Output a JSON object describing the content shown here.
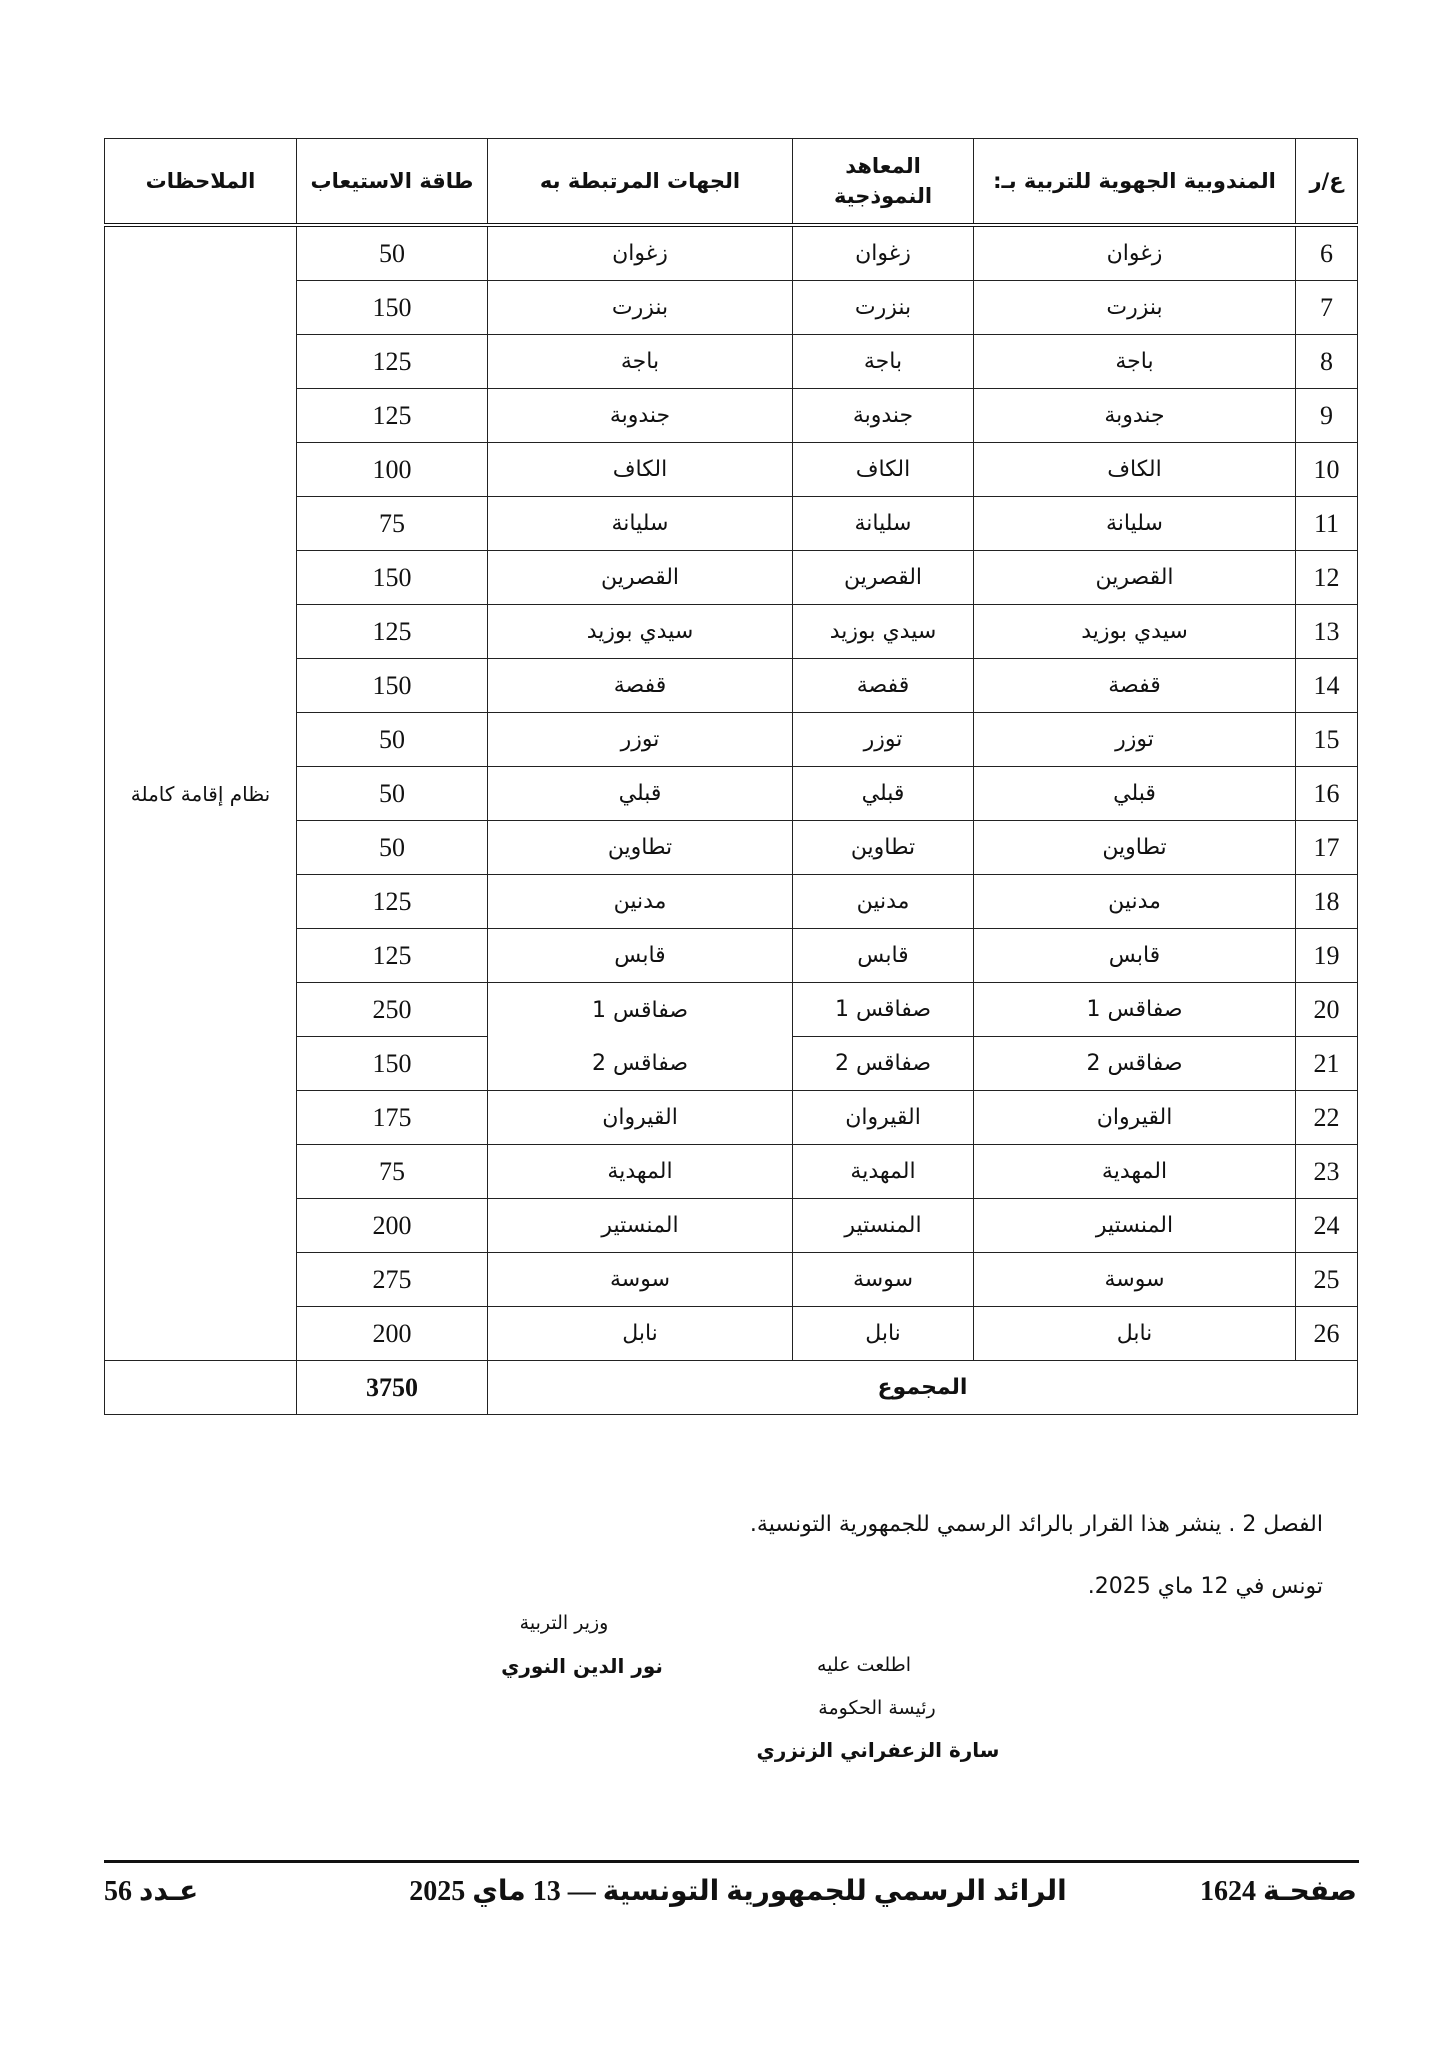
{
  "table": {
    "headers": [
      "ع/ر",
      "المندوبية الجهوية للتربية بـ:",
      "المعاهد النموذجية",
      "الجهات المرتبطة به",
      "طاقة الاستيعاب",
      "الملاحظات"
    ],
    "notes": "نظام إقامة كاملة",
    "rows": [
      {
        "n": "6",
        "region": "زغوان",
        "institute": "زغوان",
        "linked": "زغوان",
        "capacity": "50"
      },
      {
        "n": "7",
        "region": "بنزرت",
        "institute": "بنزرت",
        "linked": "بنزرت",
        "capacity": "150"
      },
      {
        "n": "8",
        "region": "باجة",
        "institute": "باجة",
        "linked": "باجة",
        "capacity": "125"
      },
      {
        "n": "9",
        "region": "جندوبة",
        "institute": "جندوبة",
        "linked": "جندوبة",
        "capacity": "125"
      },
      {
        "n": "10",
        "region": "الكاف",
        "institute": "الكاف",
        "linked": "الكاف",
        "capacity": "100"
      },
      {
        "n": "11",
        "region": "سليانة",
        "institute": "سليانة",
        "linked": "سليانة",
        "capacity": "75"
      },
      {
        "n": "12",
        "region": "القصرين",
        "institute": "القصرين",
        "linked": "القصرين",
        "capacity": "150"
      },
      {
        "n": "13",
        "region": "سيدي بوزيد",
        "institute": "سيدي بوزيد",
        "linked": "سيدي بوزيد",
        "capacity": "125"
      },
      {
        "n": "14",
        "region": "قفصة",
        "institute": "قفصة",
        "linked": "قفصة",
        "capacity": "150"
      },
      {
        "n": "15",
        "region": "توزر",
        "institute": "توزر",
        "linked": "توزر",
        "capacity": "50"
      },
      {
        "n": "16",
        "region": "قبلي",
        "institute": "قبلي",
        "linked": "قبلي",
        "capacity": "50"
      },
      {
        "n": "17",
        "region": "تطاوين",
        "institute": "تطاوين",
        "linked": "تطاوين",
        "capacity": "50"
      },
      {
        "n": "18",
        "region": "مدنين",
        "institute": "مدنين",
        "linked": "مدنين",
        "capacity": "125"
      },
      {
        "n": "19",
        "region": "قابس",
        "institute": "قابس",
        "linked": "قابس",
        "capacity": "125"
      },
      {
        "n": "20",
        "region": "صفاقس 1",
        "institute": "صفاقس 1",
        "linked": "صفاقس 1",
        "capacity": "250"
      },
      {
        "n": "21",
        "region": "صفاقس 2",
        "institute": "صفاقس 2",
        "linked": "صفاقس 2",
        "capacity": "150"
      },
      {
        "n": "22",
        "region": "القيروان",
        "institute": "القيروان",
        "linked": "القيروان",
        "capacity": "175"
      },
      {
        "n": "23",
        "region": "المهدية",
        "institute": "المهدية",
        "linked": "المهدية",
        "capacity": "75"
      },
      {
        "n": "24",
        "region": "المنستير",
        "institute": "المنستير",
        "linked": "المنستير",
        "capacity": "200"
      },
      {
        "n": "25",
        "region": "سوسة",
        "institute": "سوسة",
        "linked": "سوسة",
        "capacity": "275"
      },
      {
        "n": "26",
        "region": "نابل",
        "institute": "نابل",
        "linked": "نابل",
        "capacity": "200"
      }
    ],
    "total_label": "المجموع",
    "total_capacity": "3750"
  },
  "body": {
    "article": "الفصل 2 . ينشر هذا القرار بالرائد الرسمي للجمهورية التونسية.",
    "date_line": "تونس في 12 ماي 2025."
  },
  "signatures": {
    "minister_title": "وزير التربية",
    "minister_name": "نور الدين النوري",
    "seen_label": "اطلعت عليه",
    "pm_title": "رئيسة الحكومة",
    "pm_name": "سارة الزعفراني الزنزري"
  },
  "footer": {
    "page": "صفحـة 1624",
    "journal": "الرائد الرسمي للجمهورية التونسية — 13 ماي 2025",
    "issue": "عـدد 56"
  }
}
